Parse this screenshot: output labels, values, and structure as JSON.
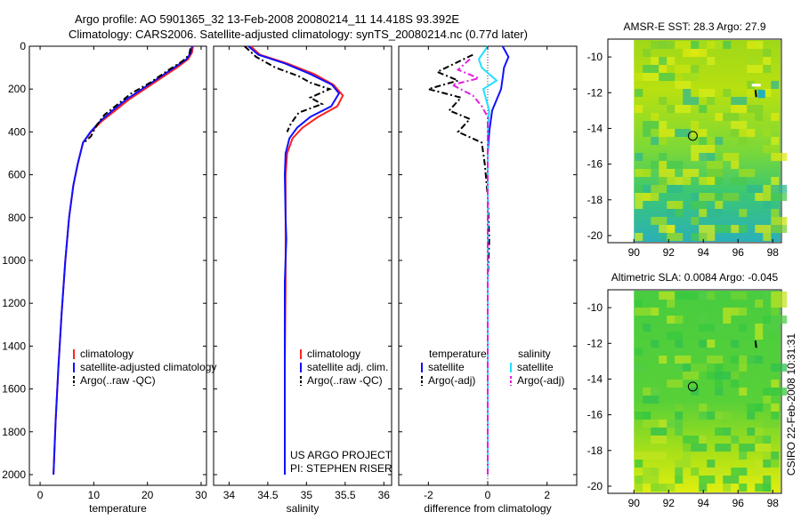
{
  "header": {
    "title_line1": "Argo profile: AO 5901365_32 13-Feb-2008 20080214_11 14.418S 93.392E",
    "title_line2": "Climatology: CARS2006. Satellite-adjusted climatology: synTS_20080214.nc (0.77d later)"
  },
  "footer": {
    "timestamp": "CSIRO 22-Feb-2008 10:31:31",
    "project_line1": "US ARGO PROJECT",
    "project_line2": "PI: STEPHEN RISER"
  },
  "colors": {
    "climatology": "#ff2020",
    "satellite": "#1010ff",
    "argo": "#000000",
    "sal_satellite": "#20e0ff",
    "sal_argo": "#e020e0"
  },
  "chart_data": [
    {
      "type": "line",
      "id": "temperature",
      "xlabel": "temperature",
      "ylabel": "",
      "xlim": [
        -2,
        31
      ],
      "ylim": [
        2050,
        0
      ],
      "x_ticks": [
        0,
        10,
        20,
        30
      ],
      "y_ticks": [
        0,
        200,
        400,
        600,
        800,
        1000,
        1200,
        1400,
        1600,
        1800,
        2000
      ],
      "legend": [
        "climatology",
        "satellite-adjusted climatology",
        "Argo(..raw -QC)"
      ],
      "series": [
        {
          "name": "climatology",
          "style": "solid",
          "color_key": "climatology",
          "points": [
            [
              28.5,
              0
            ],
            [
              28.3,
              30
            ],
            [
              27.6,
              60
            ],
            [
              25.5,
              100
            ],
            [
              22.5,
              150
            ],
            [
              19.5,
              200
            ],
            [
              16.5,
              250
            ],
            [
              14,
              300
            ],
            [
              11.5,
              350
            ],
            [
              9.5,
              400
            ],
            [
              8,
              450
            ],
            [
              7,
              550
            ],
            [
              6.2,
              650
            ],
            [
              5.4,
              800
            ],
            [
              4.7,
              1000
            ],
            [
              4,
              1250
            ],
            [
              3.4,
              1500
            ],
            [
              2.9,
              1750
            ],
            [
              2.5,
              2000
            ]
          ]
        },
        {
          "name": "satellite-adjusted climatology",
          "style": "solid",
          "color_key": "satellite",
          "points": [
            [
              28.3,
              0
            ],
            [
              28.1,
              30
            ],
            [
              27.3,
              60
            ],
            [
              25,
              100
            ],
            [
              22,
              150
            ],
            [
              19,
              200
            ],
            [
              16,
              250
            ],
            [
              13.5,
              300
            ],
            [
              11.2,
              350
            ],
            [
              9.4,
              400
            ],
            [
              8,
              450
            ],
            [
              7,
              550
            ],
            [
              6.2,
              650
            ],
            [
              5.4,
              800
            ],
            [
              4.7,
              1000
            ],
            [
              4,
              1250
            ],
            [
              3.4,
              1500
            ],
            [
              2.9,
              1750
            ],
            [
              2.5,
              2000
            ]
          ]
        },
        {
          "name": "Argo(..raw -QC)",
          "style": "dashed",
          "color_key": "argo",
          "points": [
            [
              28,
              10
            ],
            [
              27.8,
              40
            ],
            [
              26.5,
              70
            ],
            [
              24,
              110
            ],
            [
              20.5,
              170
            ],
            [
              17,
              220
            ],
            [
              14.5,
              270
            ],
            [
              12,
              320
            ],
            [
              10.5,
              370
            ],
            [
              9.5,
              420
            ],
            [
              8.2,
              450
            ]
          ]
        }
      ]
    },
    {
      "type": "line",
      "id": "salinity",
      "xlabel": "salinity",
      "ylabel": "",
      "xlim": [
        33.8,
        36.1
      ],
      "ylim": [
        2050,
        0
      ],
      "x_ticks": [
        34,
        34.5,
        35,
        35.5,
        36
      ],
      "legend": [
        "climatology",
        "satellite adj. clim.",
        "Argo(..raw -QC)"
      ],
      "series": [
        {
          "name": "climatology",
          "style": "solid",
          "color_key": "climatology",
          "points": [
            [
              34.28,
              0
            ],
            [
              34.4,
              40
            ],
            [
              34.75,
              80
            ],
            [
              35.1,
              130
            ],
            [
              35.35,
              180
            ],
            [
              35.47,
              230
            ],
            [
              35.4,
              280
            ],
            [
              35.15,
              330
            ],
            [
              34.95,
              380
            ],
            [
              34.82,
              430
            ],
            [
              34.75,
              500
            ],
            [
              34.73,
              600
            ],
            [
              34.73,
              800
            ],
            [
              34.73,
              1100
            ],
            [
              34.72,
              1500
            ],
            [
              34.72,
              2000
            ]
          ]
        },
        {
          "name": "satellite adj. clim.",
          "style": "solid",
          "color_key": "satellite",
          "points": [
            [
              34.25,
              0
            ],
            [
              34.38,
              40
            ],
            [
              34.72,
              80
            ],
            [
              35.05,
              130
            ],
            [
              35.33,
              180
            ],
            [
              35.42,
              220
            ],
            [
              35.32,
              280
            ],
            [
              35.05,
              330
            ],
            [
              34.88,
              380
            ],
            [
              34.78,
              430
            ],
            [
              34.73,
              500
            ],
            [
              34.72,
              600
            ],
            [
              34.73,
              800
            ],
            [
              34.74,
              900
            ],
            [
              34.72,
              1100
            ],
            [
              34.72,
              1500
            ],
            [
              34.72,
              2000
            ]
          ]
        },
        {
          "name": "Argo(..raw -QC)",
          "style": "dashed",
          "color_key": "argo",
          "points": [
            [
              34.2,
              0
            ],
            [
              34.35,
              50
            ],
            [
              34.6,
              100
            ],
            [
              34.9,
              140
            ],
            [
              35.05,
              170
            ],
            [
              35.3,
              200
            ],
            [
              35.05,
              240
            ],
            [
              35.2,
              270
            ],
            [
              34.9,
              310
            ],
            [
              34.8,
              360
            ],
            [
              34.75,
              400
            ]
          ]
        }
      ]
    },
    {
      "type": "line",
      "id": "difference",
      "xlabel": "difference from climatology",
      "ylabel": "",
      "xlim": [
        -3,
        3
      ],
      "ylim": [
        2050,
        0
      ],
      "x_ticks": [
        -2,
        0,
        2
      ],
      "legend_titles": [
        "temperature",
        "salinity"
      ],
      "legend": [
        "satellite",
        "Argo(-adj)",
        "satellite",
        "Argo(-adj)"
      ],
      "series": [
        {
          "name": "temperature satellite",
          "style": "solid",
          "color_key": "satellite",
          "points": [
            [
              0.5,
              0
            ],
            [
              0.7,
              50
            ],
            [
              0.55,
              100
            ],
            [
              0.5,
              150
            ],
            [
              0.45,
              200
            ],
            [
              0.15,
              300
            ],
            [
              0.05,
              400
            ],
            [
              0,
              500
            ],
            [
              0,
              2000
            ]
          ]
        },
        {
          "name": "temperature Argo(-adj)",
          "style": "dashed",
          "color_key": "argo",
          "points": [
            [
              -0.5,
              40
            ],
            [
              -1.7,
              120
            ],
            [
              -1.0,
              160
            ],
            [
              -2.0,
              200
            ],
            [
              -0.9,
              240
            ],
            [
              -1.3,
              300
            ],
            [
              -0.6,
              340
            ],
            [
              -1.0,
              400
            ],
            [
              -0.2,
              450
            ],
            [
              -0.1,
              550
            ],
            [
              0,
              700
            ],
            [
              0.05,
              900
            ],
            [
              0,
              1100
            ],
            [
              0,
              2000
            ]
          ]
        },
        {
          "name": "salinity satellite",
          "style": "solid",
          "color_key": "sal_satellite",
          "points": [
            [
              0,
              0
            ],
            [
              -0.3,
              60
            ],
            [
              -0.2,
              100
            ],
            [
              0.3,
              160
            ],
            [
              -0.15,
              200
            ],
            [
              0.05,
              300
            ],
            [
              0,
              400
            ],
            [
              0,
              2000
            ]
          ]
        },
        {
          "name": "salinity Argo(-adj)",
          "style": "dashed",
          "color_key": "sal_argo",
          "points": [
            [
              -0.6,
              60
            ],
            [
              -1.0,
              110
            ],
            [
              -0.3,
              150
            ],
            [
              -1.2,
              180
            ],
            [
              -0.5,
              230
            ],
            [
              -0.2,
              280
            ],
            [
              0,
              330
            ],
            [
              0,
              2000
            ]
          ]
        }
      ]
    },
    {
      "type": "heatmap",
      "id": "sst_map",
      "title": "AMSR-E SST: 28.3 Argo: 27.9",
      "xlim": [
        88.5,
        98.5
      ],
      "ylim": [
        -20.4,
        -9
      ],
      "x_ticks": [
        90,
        92,
        94,
        96,
        98
      ],
      "y_ticks": [
        -10,
        -12,
        -14,
        -16,
        -18,
        -20
      ],
      "data_extent_x": [
        90,
        98.5
      ],
      "argo_position": [
        93.392,
        -14.418
      ],
      "track_position": [
        97,
        -12
      ]
    },
    {
      "type": "heatmap",
      "id": "sla_map",
      "title": "Altimetric SLA: 0.0084 Argo: -0.045",
      "xlim": [
        88.5,
        98.5
      ],
      "ylim": [
        -20.4,
        -9
      ],
      "x_ticks": [
        90,
        92,
        94,
        96,
        98
      ],
      "y_ticks": [
        -10,
        -12,
        -14,
        -16,
        -18,
        -20
      ],
      "data_extent_x": [
        90,
        98.5
      ],
      "argo_position": [
        93.392,
        -14.418
      ],
      "track_position": [
        97,
        -12
      ]
    }
  ]
}
